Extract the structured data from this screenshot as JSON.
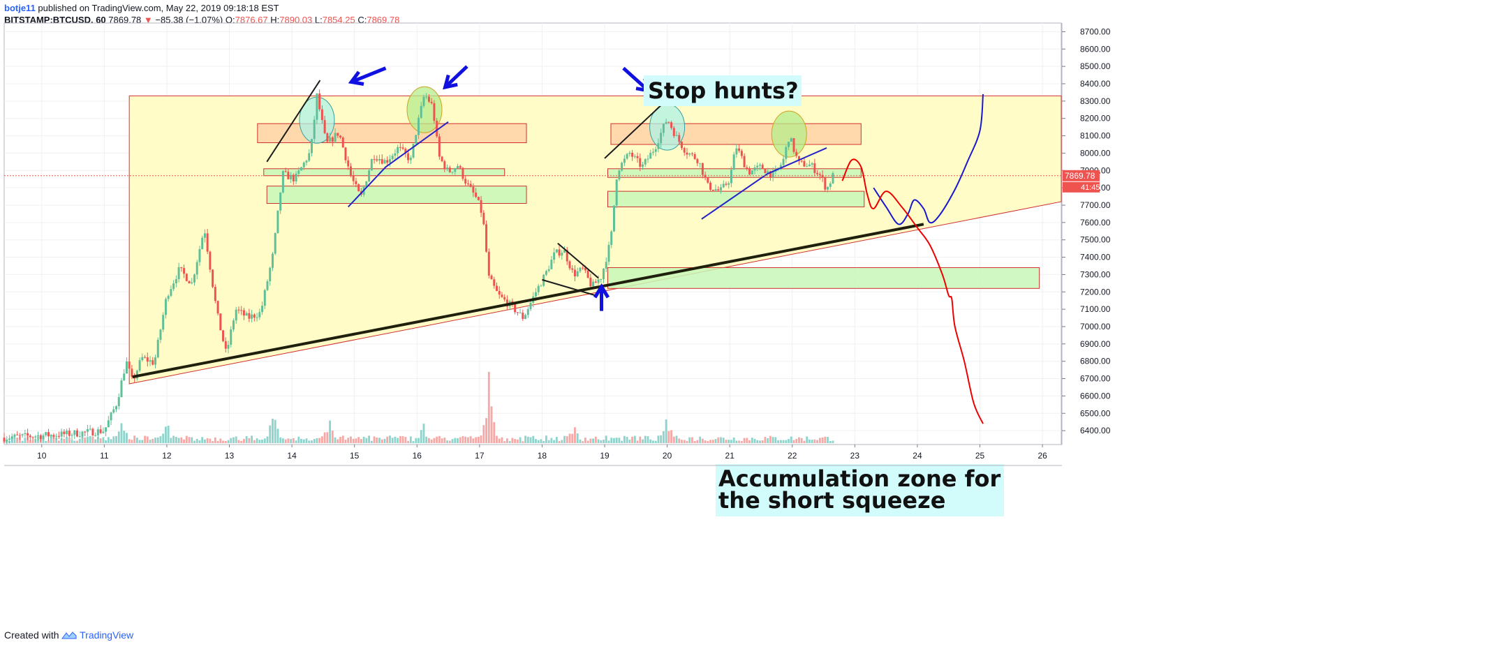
{
  "header": {
    "user": "botje11",
    "published": "published on TradingView.com, May 22, 2019 09:18:18 EST",
    "symbol": "BITSTAMP:BTCUSD, 60",
    "last": "7869.78",
    "change_arrow": "▼",
    "change": "−85.38 (−1.07%)",
    "o_label": "O:",
    "o_val": "7876.67",
    "h_label": "H:",
    "h_val": "7890.03",
    "l_label": "L:",
    "l_val": "7854.25",
    "c_label": "C:",
    "c_val": "7869.78"
  },
  "footer": {
    "created": "Created with",
    "brand": "TradingView"
  },
  "colors": {
    "up": "#26a69a",
    "down": "#ef5350",
    "up_soft": "#5fbf97",
    "triangle_fill": "#fffcc8",
    "triangle_stroke": "#d03030",
    "zone_orange": "#ffd2a6",
    "zone_green": "#c8f7b7",
    "annotation_blue": "#0000ee",
    "projection_red": "#ee0000",
    "trend_black": "#1c1c1c"
  },
  "chart_data": {
    "type": "candlestick",
    "x_unit": "day of month (May 2019), hourly bars",
    "xlim": [
      9.4,
      26.3
    ],
    "ylim": [
      6320,
      8750
    ],
    "y_ticks": [
      6400,
      6500,
      6600,
      6700,
      6800,
      6900,
      7000,
      7100,
      7200,
      7300,
      7400,
      7500,
      7600,
      7700,
      7800,
      7900,
      8000,
      8100,
      8200,
      8300,
      8400,
      8500,
      8600,
      8700
    ],
    "y_tick_labels": [
      "6400.00",
      "6500.00",
      "6600.00",
      "6700.00",
      "6800.00",
      "6900.00",
      "7000.00",
      "7100.00",
      "7200.00",
      "7300.00",
      "7400.00",
      "7500.00",
      "7600.00",
      "7700.00",
      "7800.00",
      "7900.00",
      "8000.00",
      "8100.00",
      "8200.00",
      "8300.00",
      "8400.00",
      "8500.00",
      "8600.00",
      "8700.00"
    ],
    "x_ticks": [
      10,
      11,
      12,
      13,
      14,
      15,
      16,
      17,
      18,
      19,
      20,
      21,
      22,
      23,
      24,
      25,
      26
    ],
    "x_tick_labels": [
      "10",
      "11",
      "12",
      "13",
      "14",
      "15",
      "16",
      "17",
      "18",
      "19",
      "20",
      "21",
      "22",
      "23",
      "24",
      "25",
      "26"
    ],
    "last_price": 7869.78,
    "last_price_label": "7869.78",
    "countdown_label": "41:45",
    "price_path": [
      [
        9.4,
        6360
      ],
      [
        10.4,
        6380
      ],
      [
        11.0,
        6400
      ],
      [
        11.2,
        6560
      ],
      [
        11.35,
        6800
      ],
      [
        11.45,
        6680
      ],
      [
        11.6,
        6820
      ],
      [
        11.8,
        6790
      ],
      [
        12.0,
        7180
      ],
      [
        12.2,
        7330
      ],
      [
        12.4,
        7250
      ],
      [
        12.6,
        7570
      ],
      [
        12.8,
        7080
      ],
      [
        12.95,
        6840
      ],
      [
        13.1,
        7100
      ],
      [
        13.3,
        7050
      ],
      [
        13.5,
        7080
      ],
      [
        13.7,
        7420
      ],
      [
        13.85,
        7880
      ],
      [
        14.05,
        7850
      ],
      [
        14.3,
        8010
      ],
      [
        14.4,
        8330
      ],
      [
        14.55,
        8050
      ],
      [
        14.75,
        8120
      ],
      [
        14.95,
        7860
      ],
      [
        15.1,
        7740
      ],
      [
        15.3,
        7990
      ],
      [
        15.5,
        7950
      ],
      [
        15.7,
        8030
      ],
      [
        15.9,
        7960
      ],
      [
        16.0,
        8150
      ],
      [
        16.12,
        8340
      ],
      [
        16.25,
        8270
      ],
      [
        16.35,
        7980
      ],
      [
        16.5,
        7890
      ],
      [
        16.65,
        7930
      ],
      [
        16.8,
        7820
      ],
      [
        16.95,
        7740
      ],
      [
        17.05,
        7640
      ],
      [
        17.15,
        7280
      ],
      [
        17.3,
        7180
      ],
      [
        17.5,
        7120
      ],
      [
        17.7,
        7050
      ],
      [
        17.9,
        7200
      ],
      [
        18.05,
        7300
      ],
      [
        18.2,
        7420
      ],
      [
        18.35,
        7440
      ],
      [
        18.5,
        7300
      ],
      [
        18.65,
        7330
      ],
      [
        18.8,
        7230
      ],
      [
        18.95,
        7290
      ],
      [
        19.1,
        7500
      ],
      [
        19.2,
        7900
      ],
      [
        19.4,
        8000
      ],
      [
        19.6,
        7920
      ],
      [
        19.8,
        8030
      ],
      [
        20.0,
        8200
      ],
      [
        20.15,
        8090
      ],
      [
        20.3,
        8010
      ],
      [
        20.5,
        7960
      ],
      [
        20.65,
        7810
      ],
      [
        20.85,
        7780
      ],
      [
        21.0,
        7850
      ],
      [
        21.1,
        8040
      ],
      [
        21.3,
        7890
      ],
      [
        21.5,
        7920
      ],
      [
        21.7,
        7870
      ],
      [
        21.85,
        7950
      ],
      [
        21.95,
        8100
      ],
      [
        22.1,
        7940
      ],
      [
        22.3,
        7930
      ],
      [
        22.45,
        7870
      ],
      [
        22.55,
        7790
      ],
      [
        22.65,
        7869.78
      ]
    ],
    "volume_max": 700,
    "volume_spikes": [
      [
        17.15,
        700
      ],
      [
        13.7,
        400
      ],
      [
        11.3,
        330
      ],
      [
        14.6,
        350
      ],
      [
        18.5,
        250
      ],
      [
        20.0,
        320
      ],
      [
        12.0,
        280
      ],
      [
        16.1,
        270
      ]
    ],
    "annotations": {
      "stop_hunts": "Stop hunts?",
      "accumulation_line1": "Accumulation zone for",
      "accumulation_line2": "the short squeeze"
    },
    "triangle": {
      "apex_top": [
        [
          11.4,
          8330
        ],
        [
          26.3,
          8330
        ]
      ],
      "lower_edge": [
        [
          11.4,
          6670
        ],
        [
          26.3,
          7720
        ]
      ]
    },
    "main_trendline": [
      [
        11.45,
        6710
      ],
      [
        24.1,
        7590
      ]
    ],
    "zones": [
      {
        "color": "orange",
        "x": [
          13.45,
          17.75
        ],
        "y": [
          8060,
          8170
        ]
      },
      {
        "color": "orange",
        "x": [
          19.1,
          23.1
        ],
        "y": [
          8050,
          8170
        ]
      },
      {
        "color": "green",
        "x": [
          13.55,
          17.4
        ],
        "y": [
          7870,
          7910
        ]
      },
      {
        "color": "green",
        "x": [
          13.6,
          17.75
        ],
        "y": [
          7710,
          7810
        ]
      },
      {
        "color": "green",
        "x": [
          19.05,
          23.1
        ],
        "y": [
          7860,
          7910
        ]
      },
      {
        "color": "green",
        "x": [
          19.05,
          23.15
        ],
        "y": [
          7690,
          7780
        ]
      },
      {
        "color": "green",
        "x": [
          19.05,
          25.95
        ],
        "y": [
          7220,
          7340
        ]
      }
    ],
    "highlight_circles": [
      {
        "color": "teal",
        "x": 14.4,
        "y": 8190
      },
      {
        "color": "green",
        "x": 16.12,
        "y": 8250
      },
      {
        "color": "teal",
        "x": 20.0,
        "y": 8150
      },
      {
        "color": "green",
        "x": 21.95,
        "y": 8110
      }
    ],
    "blue_projection": [
      [
        23.3,
        7800
      ],
      [
        23.5,
        7690
      ],
      [
        23.7,
        7590
      ],
      [
        23.85,
        7650
      ],
      [
        23.95,
        7730
      ],
      [
        24.1,
        7680
      ],
      [
        24.2,
        7600
      ],
      [
        24.35,
        7640
      ],
      [
        24.6,
        7790
      ],
      [
        24.8,
        7950
      ],
      [
        25.0,
        8130
      ],
      [
        25.05,
        8340
      ]
    ],
    "red_projection": [
      [
        22.8,
        7840
      ],
      [
        22.95,
        7960
      ],
      [
        23.1,
        7920
      ],
      [
        23.2,
        7760
      ],
      [
        23.3,
        7680
      ],
      [
        23.5,
        7780
      ],
      [
        23.75,
        7690
      ],
      [
        24.0,
        7570
      ],
      [
        24.2,
        7470
      ],
      [
        24.4,
        7300
      ],
      [
        24.5,
        7180
      ],
      [
        24.55,
        7160
      ],
      [
        24.6,
        7000
      ],
      [
        24.75,
        6800
      ],
      [
        24.9,
        6560
      ],
      [
        25.05,
        6440
      ]
    ],
    "small_lines": [
      {
        "color": "black",
        "pts": [
          [
            13.6,
            7950
          ],
          [
            14.45,
            8420
          ]
        ]
      },
      {
        "color": "blue",
        "pts": [
          [
            14.9,
            7690
          ],
          [
            15.5,
            7920
          ],
          [
            16.5,
            8180
          ]
        ]
      },
      {
        "color": "black",
        "pts": [
          [
            19.0,
            7970
          ],
          [
            20.15,
            8360
          ]
        ]
      },
      {
        "color": "blue",
        "pts": [
          [
            20.55,
            7620
          ],
          [
            21.6,
            7880
          ],
          [
            22.55,
            8030
          ]
        ]
      },
      {
        "color": "black",
        "pts": [
          [
            18.25,
            7480
          ],
          [
            18.9,
            7280
          ]
        ]
      },
      {
        "color": "black",
        "pts": [
          [
            18.0,
            7270
          ],
          [
            18.85,
            7180
          ]
        ]
      }
    ],
    "blue_arrows": [
      {
        "from": [
          15.5,
          8490
        ],
        "to": [
          14.95,
          8410
        ]
      },
      {
        "from": [
          16.8,
          8500
        ],
        "to": [
          16.45,
          8380
        ]
      },
      {
        "from": [
          19.3,
          8490
        ],
        "to": [
          19.7,
          8360
        ]
      },
      {
        "from": [
          18.95,
          7090
        ],
        "to": [
          18.95,
          7230
        ]
      }
    ]
  }
}
